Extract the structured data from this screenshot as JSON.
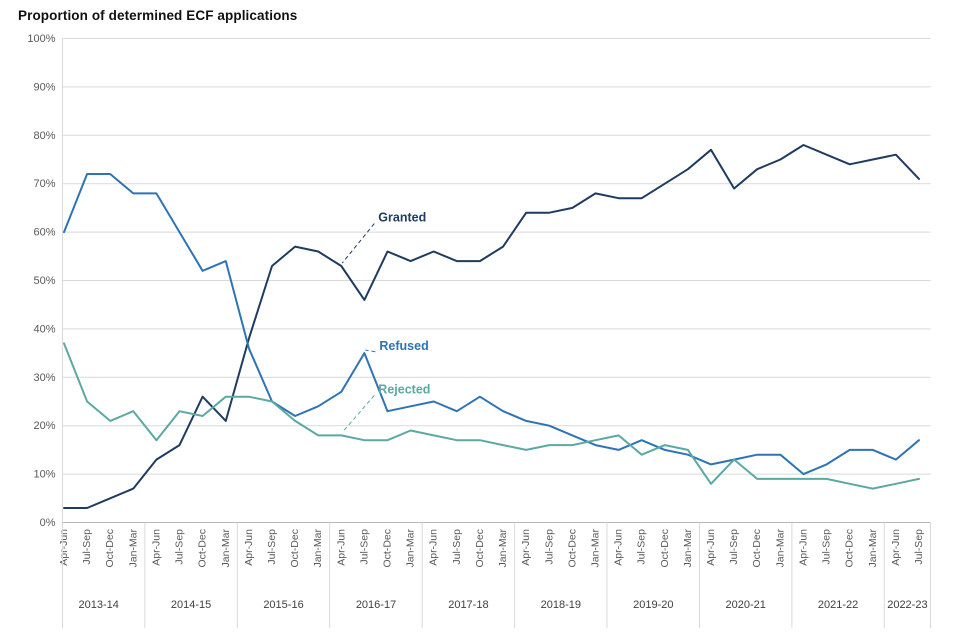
{
  "title": "Proportion of determined ECF applications",
  "chart_data": {
    "type": "line",
    "title": "Proportion of determined ECF applications",
    "ylim": [
      0,
      100
    ],
    "ytick_step": 10,
    "ytick_labels": [
      "0%",
      "10%",
      "20%",
      "30%",
      "40%",
      "50%",
      "60%",
      "70%",
      "80%",
      "90%",
      "100%"
    ],
    "grid": true,
    "legend_position": "inline-annotations",
    "quarter_cycle": [
      "Apr-Jun",
      "Jul-Sep",
      "Oct-Dec",
      "Jan-Mar"
    ],
    "year_groups": [
      {
        "label": "2013-14",
        "quarters": 4
      },
      {
        "label": "2014-15",
        "quarters": 4
      },
      {
        "label": "2015-16",
        "quarters": 4
      },
      {
        "label": "2016-17",
        "quarters": 4
      },
      {
        "label": "2017-18",
        "quarters": 4
      },
      {
        "label": "2018-19",
        "quarters": 4
      },
      {
        "label": "2019-20",
        "quarters": 4
      },
      {
        "label": "2020-21",
        "quarters": 4
      },
      {
        "label": "2021-22",
        "quarters": 4
      },
      {
        "label": "2022-23",
        "quarters": 2
      }
    ],
    "series": [
      {
        "name": "Granted",
        "color": "#1f3c5f",
        "values": [
          3,
          3,
          5,
          7,
          13,
          16,
          26,
          21,
          38,
          53,
          57,
          56,
          53,
          46,
          56,
          54,
          56,
          54,
          54,
          57,
          64,
          64,
          65,
          68,
          67,
          67,
          70,
          73,
          77,
          69,
          73,
          75,
          78,
          76,
          74,
          75,
          76,
          71
        ]
      },
      {
        "name": "Refused",
        "color": "#2e74b5",
        "values": [
          60,
          72,
          72,
          68,
          68,
          60,
          52,
          54,
          36,
          25,
          22,
          24,
          27,
          35,
          23,
          24,
          25,
          23,
          26,
          23,
          21,
          20,
          18,
          16,
          15,
          17,
          15,
          14,
          12,
          13,
          14,
          14,
          10,
          12,
          15,
          15,
          13,
          17
        ]
      },
      {
        "name": "Rejected",
        "color": "#5ba9a1",
        "values": [
          37,
          25,
          21,
          23,
          17,
          23,
          22,
          26,
          26,
          25,
          21,
          18,
          18,
          17,
          17,
          19,
          18,
          17,
          17,
          16,
          15,
          16,
          16,
          17,
          18,
          14,
          16,
          15,
          8,
          13,
          9,
          9,
          9,
          9,
          8,
          7,
          8,
          9
        ]
      }
    ],
    "annotations": [
      {
        "text": "Granted",
        "series": 0,
        "point": 12,
        "label_point": 13.6,
        "label_pct": 63
      },
      {
        "text": "Refused",
        "series": 1,
        "point": 13,
        "label_point": 13.65,
        "label_pct": 36.5
      },
      {
        "text": "Rejected",
        "series": 2,
        "point": 12,
        "label_point": 13.6,
        "label_pct": 27.5
      }
    ],
    "colors": {
      "grid": "#d9d9d9",
      "axis": "#b7b7b7",
      "tick_label": "#595959",
      "year_label": "#404040"
    }
  }
}
